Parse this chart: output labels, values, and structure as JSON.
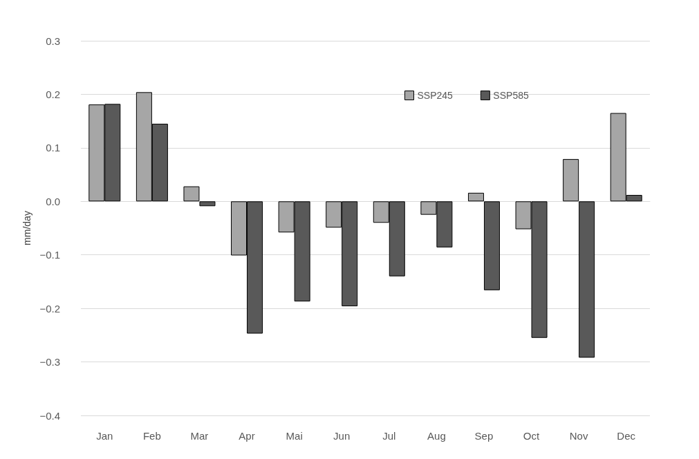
{
  "chart_data": {
    "type": "bar",
    "ylabel": "mm/day",
    "categories": [
      "Jan",
      "Feb",
      "Mar",
      "Apr",
      "Mai",
      "Jun",
      "Jul",
      "Aug",
      "Sep",
      "Oct",
      "Nov",
      "Dec"
    ],
    "series": [
      {
        "name": "SSP245",
        "color": "#a6a6a6",
        "values": [
          0.181,
          0.204,
          0.028,
          -0.101,
          -0.058,
          -0.049,
          -0.04,
          -0.025,
          0.016,
          -0.052,
          0.079,
          0.165
        ]
      },
      {
        "name": "SSP585",
        "color": "#595959",
        "values": [
          0.182,
          0.145,
          -0.009,
          -0.247,
          -0.187,
          -0.196,
          -0.14,
          -0.086,
          -0.166,
          -0.255,
          -0.292,
          0.012
        ]
      }
    ],
    "ylim": [
      -0.4,
      0.3
    ],
    "yticks": [
      {
        "value": -0.4,
        "label": "−0.4"
      },
      {
        "value": -0.3,
        "label": "−0.3"
      },
      {
        "value": -0.2,
        "label": "−0.2"
      },
      {
        "value": -0.1,
        "label": "−0.1"
      },
      {
        "value": 0,
        "label": "0.0"
      },
      {
        "value": 0.1,
        "label": "0.1"
      },
      {
        "value": 0.2,
        "label": "0.2"
      },
      {
        "value": 0.3,
        "label": "0.3"
      }
    ],
    "grid": "y",
    "legend": "top right"
  }
}
